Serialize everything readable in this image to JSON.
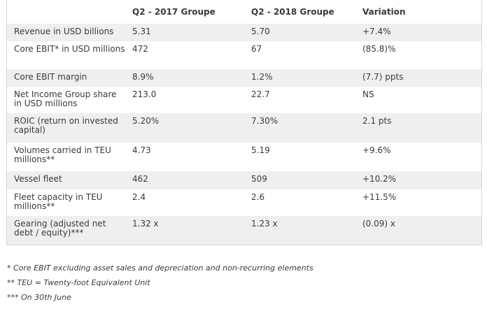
{
  "table": {
    "headers": [
      "",
      "Q2 - 2017 Groupe",
      "Q2 - 2018 Groupe",
      "Variation"
    ],
    "rows": [
      [
        "Revenue in USD billions",
        "5.31",
        "5.70",
        "+7.4%"
      ],
      [
        "Core EBIT* in USD millions",
        "472",
        "67",
        "(85.8)%"
      ],
      [
        "Core EBIT margin",
        "8.9%",
        "1.2%",
        "(7.7) ppts"
      ],
      [
        "Net Income Group share in USD millions",
        "213.0",
        "22.7",
        "NS"
      ],
      [
        "ROIC (return on invested capital)",
        "5.20%",
        "7.30%",
        "2.1 pts"
      ],
      [
        "Volumes carried in TEU millions**",
        "4.73",
        "5.19",
        "+9.6%"
      ],
      [
        "Vessel fleet",
        "462",
        "509",
        "+10.2%"
      ],
      [
        "Fleet capacity in TEU millions**",
        "2.4",
        "2.6",
        "+11.5%"
      ],
      [
        "Gearing (adjusted net debt / equity)***",
        "1.32 x",
        "1.23 x",
        "(0.09) x"
      ]
    ]
  },
  "footnotes": [
    "* Core EBIT excluding asset sales and depreciation and non-recurring elements",
    "** TEU = Twenty-foot Equivalent Unit",
    "*** On 30th June"
  ]
}
